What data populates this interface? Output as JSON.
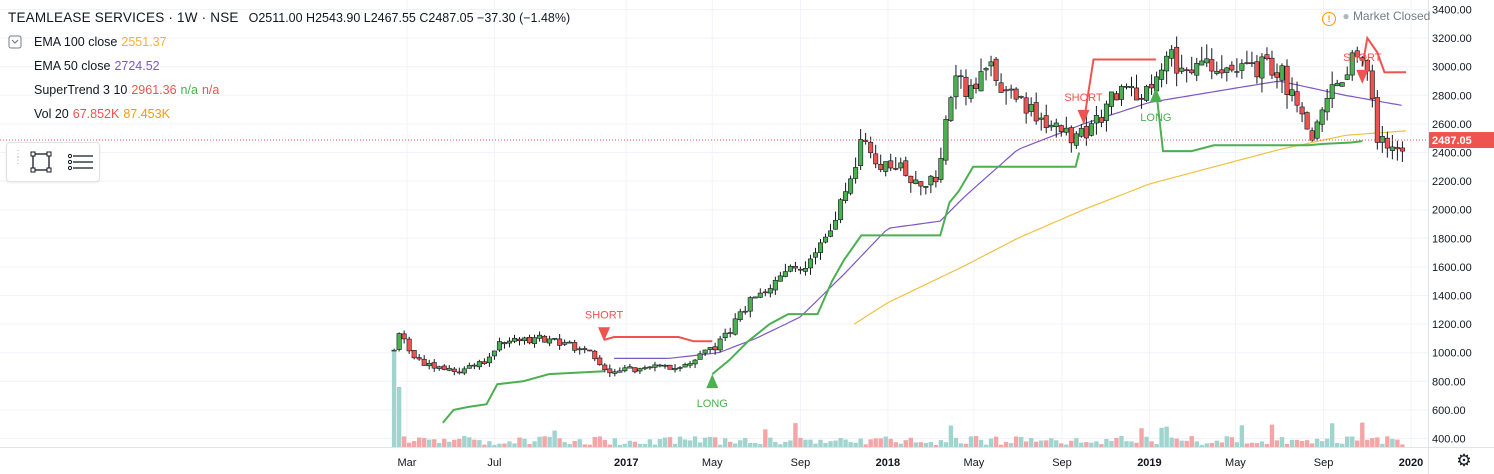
{
  "legend": {
    "symbol": "TEAMLEASE SERVICES · 1W · NSE",
    "ohlc": "O2511.00 H2543.90 L2467.55 C2487.05 −37.30 (−1.48%)",
    "indicators": [
      {
        "label": "EMA 100 close",
        "value": "2551.37",
        "color": "#f0b429"
      },
      {
        "label": "EMA 50 close",
        "value": "2724.52",
        "color": "#7e57c2"
      },
      {
        "label": "SuperTrend 3 10",
        "value": "2961.36",
        "extra1": "n/a",
        "extra2": "n/a",
        "color": "#ef5350",
        "extra_color": "#4caf50"
      },
      {
        "label": "Vol 20",
        "value": "67.852K",
        "value2": "87.453K",
        "color": "#ef5350",
        "color2": "#ff9800"
      }
    ]
  },
  "status": {
    "market": "Market Closed",
    "icon": "!"
  },
  "colors": {
    "up": "#4caf50",
    "down": "#ef5350",
    "body_up": "#4caf50",
    "body_down": "#ef5350",
    "ema100": "#f0c040",
    "ema50": "#7e57c2",
    "st_up": "#4caf50",
    "st_down": "#ef5350",
    "vol_up": "#9fd4cf",
    "vol_down": "#f4a6a6",
    "last_price": "#ef5350",
    "grid": "#f0f3fa"
  },
  "chart_data": {
    "type": "candlestick",
    "timeframe": "1W",
    "last_price": "2487.05",
    "y_ticks": [
      400,
      600,
      800,
      1000,
      1200,
      1400,
      1600,
      1800,
      2000,
      2200,
      2400,
      2600,
      2800,
      3000,
      3200,
      3400
    ],
    "y_tick_labels": [
      "400.00",
      "600.00",
      "800.00",
      "1000.00",
      "1200.00",
      "1400.00",
      "1600.00",
      "1800.00",
      "2000.00",
      "2200.00",
      "2400.00",
      "2600.00",
      "2800.00",
      "3000.00",
      "3200.00",
      "3400.00"
    ],
    "x_labels": [
      {
        "text": "Mar",
        "date": "2016-03-01",
        "bold": false
      },
      {
        "text": "Jul",
        "date": "2016-07-01",
        "bold": false
      },
      {
        "text": "2017",
        "date": "2017-01-01",
        "bold": true
      },
      {
        "text": "May",
        "date": "2017-05-01",
        "bold": false
      },
      {
        "text": "Sep",
        "date": "2017-09-01",
        "bold": false
      },
      {
        "text": "2018",
        "date": "2018-01-01",
        "bold": true
      },
      {
        "text": "May",
        "date": "2018-05-01",
        "bold": false
      },
      {
        "text": "Sep",
        "date": "2018-09-01",
        "bold": false
      },
      {
        "text": "2019",
        "date": "2019-01-01",
        "bold": true
      },
      {
        "text": "May",
        "date": "2019-05-01",
        "bold": false
      },
      {
        "text": "Sep",
        "date": "2019-09-01",
        "bold": false
      },
      {
        "text": "2020",
        "date": "2020-01-01",
        "bold": true
      }
    ],
    "price_anchors": [
      [
        "2016-02-12",
        1010
      ],
      [
        "2016-02-19",
        1150
      ],
      [
        "2016-03-01",
        1040
      ],
      [
        "2016-03-15",
        960
      ],
      [
        "2016-04-01",
        910
      ],
      [
        "2016-05-01",
        870
      ],
      [
        "2016-06-01",
        900
      ],
      [
        "2016-06-25",
        950
      ],
      [
        "2016-07-05",
        1070
      ],
      [
        "2016-08-01",
        1080
      ],
      [
        "2016-09-01",
        1100
      ],
      [
        "2016-10-15",
        1050
      ],
      [
        "2016-11-15",
        980
      ],
      [
        "2016-12-01",
        870
      ],
      [
        "2017-01-01",
        880
      ],
      [
        "2017-02-01",
        900
      ],
      [
        "2017-03-01",
        890
      ],
      [
        "2017-04-01",
        920
      ],
      [
        "2017-04-20",
        1000
      ],
      [
        "2017-05-10",
        1060
      ],
      [
        "2017-06-01",
        1200
      ],
      [
        "2017-06-20",
        1350
      ],
      [
        "2017-07-15",
        1400
      ],
      [
        "2017-08-15",
        1600
      ],
      [
        "2017-09-15",
        1620
      ],
      [
        "2017-10-05",
        1800
      ],
      [
        "2017-10-25",
        2000
      ],
      [
        "2017-11-10",
        2200
      ],
      [
        "2017-11-25",
        2450
      ],
      [
        "2017-12-25",
        2300
      ],
      [
        "2018-01-15",
        2300
      ],
      [
        "2018-02-10",
        2150
      ],
      [
        "2018-03-10",
        2200
      ],
      [
        "2018-03-25",
        2650
      ],
      [
        "2018-04-05",
        3000
      ],
      [
        "2018-04-25",
        2800
      ],
      [
        "2018-05-20",
        3000
      ],
      [
        "2018-06-20",
        2800
      ],
      [
        "2018-07-25",
        2650
      ],
      [
        "2018-08-25",
        2550
      ],
      [
        "2018-09-25",
        2500
      ],
      [
        "2018-10-20",
        2600
      ],
      [
        "2018-11-20",
        2850
      ],
      [
        "2018-12-20",
        2750
      ],
      [
        "2019-01-10",
        2950
      ],
      [
        "2019-02-01",
        3050
      ],
      [
        "2019-03-01",
        2950
      ],
      [
        "2019-04-01",
        3000
      ],
      [
        "2019-05-01",
        2950
      ],
      [
        "2019-06-01",
        3000
      ],
      [
        "2019-07-01",
        3000
      ],
      [
        "2019-07-25",
        2700
      ],
      [
        "2019-08-15",
        2450
      ],
      [
        "2019-09-10",
        2850
      ],
      [
        "2019-10-15",
        3050
      ],
      [
        "2019-11-05",
        2950
      ],
      [
        "2019-11-15",
        2500
      ],
      [
        "2019-12-01",
        2400
      ],
      [
        "2019-12-25",
        2490
      ]
    ],
    "ema50_anchors": [
      [
        "2016-12-15",
        960
      ],
      [
        "2017-03-01",
        960
      ],
      [
        "2017-05-10",
        1000
      ],
      [
        "2017-07-01",
        1100
      ],
      [
        "2017-09-01",
        1250
      ],
      [
        "2017-11-01",
        1550
      ],
      [
        "2018-01-01",
        1870
      ],
      [
        "2018-03-15",
        1920
      ],
      [
        "2018-04-20",
        2100
      ],
      [
        "2018-07-01",
        2420
      ],
      [
        "2018-10-01",
        2600
      ],
      [
        "2019-01-01",
        2750
      ],
      [
        "2019-05-01",
        2850
      ],
      [
        "2019-07-01",
        2900
      ],
      [
        "2019-10-01",
        2800
      ],
      [
        "2019-12-25",
        2724.52
      ]
    ],
    "ema100_anchors": [
      [
        "2017-11-15",
        1200
      ],
      [
        "2018-01-01",
        1350
      ],
      [
        "2018-04-15",
        1600
      ],
      [
        "2018-07-01",
        1800
      ],
      [
        "2018-10-01",
        2000
      ],
      [
        "2019-01-01",
        2180
      ],
      [
        "2019-04-01",
        2300
      ],
      [
        "2019-07-01",
        2420
      ],
      [
        "2019-10-01",
        2520
      ],
      [
        "2019-12-25",
        2551.37
      ]
    ],
    "supertrend_segments": [
      {
        "dir": "up",
        "points": [
          [
            "2016-04-20",
            510
          ],
          [
            "2016-05-05",
            600
          ],
          [
            "2016-05-25",
            620
          ],
          [
            "2016-06-20",
            640
          ],
          [
            "2016-07-05",
            780
          ],
          [
            "2016-08-10",
            800
          ],
          [
            "2016-09-15",
            850
          ],
          [
            "2016-12-01",
            870
          ]
        ]
      },
      {
        "dir": "down",
        "points": [
          [
            "2016-12-01",
            1090
          ],
          [
            "2016-12-15",
            1110
          ],
          [
            "2017-03-15",
            1110
          ],
          [
            "2017-04-05",
            1080
          ],
          [
            "2017-05-01",
            1080
          ]
        ]
      },
      {
        "dir": "up",
        "points": [
          [
            "2017-05-01",
            850
          ],
          [
            "2017-05-25",
            950
          ],
          [
            "2017-06-20",
            1080
          ],
          [
            "2017-07-20",
            1200
          ],
          [
            "2017-08-15",
            1270
          ],
          [
            "2017-09-25",
            1270
          ],
          [
            "2017-10-15",
            1500
          ],
          [
            "2017-11-01",
            1650
          ],
          [
            "2017-11-25",
            1820
          ],
          [
            "2018-03-15",
            1820
          ],
          [
            "2018-03-28",
            2050
          ],
          [
            "2018-04-10",
            2130
          ],
          [
            "2018-04-30",
            2300
          ],
          [
            "2018-09-20",
            2300
          ],
          [
            "2018-09-25",
            2400
          ]
        ]
      },
      {
        "dir": "down",
        "points": [
          [
            "2018-10-01",
            2600
          ],
          [
            "2018-10-15",
            3050
          ],
          [
            "2019-01-10",
            3050
          ]
        ]
      },
      {
        "dir": "up",
        "points": [
          [
            "2019-01-10",
            2850
          ],
          [
            "2019-01-20",
            2410
          ],
          [
            "2019-03-01",
            2410
          ],
          [
            "2019-04-01",
            2450
          ],
          [
            "2019-08-10",
            2450
          ],
          [
            "2019-09-01",
            2460
          ],
          [
            "2019-10-10",
            2470
          ],
          [
            "2019-10-25",
            2480
          ]
        ]
      },
      {
        "dir": "down",
        "points": [
          [
            "2019-10-25",
            3000
          ],
          [
            "2019-11-01",
            3200
          ],
          [
            "2019-11-15",
            3100
          ],
          [
            "2019-11-25",
            2960
          ],
          [
            "2019-12-25",
            2961.36
          ]
        ]
      }
    ],
    "signals": [
      {
        "type": "SHORT",
        "date": "2016-12-01",
        "price": 1080
      },
      {
        "type": "LONG",
        "date": "2017-05-01",
        "price": 850
      },
      {
        "type": "SHORT",
        "date": "2018-10-01",
        "price": 2600
      },
      {
        "type": "LONG",
        "date": "2019-01-10",
        "price": 2850
      },
      {
        "type": "SHORT",
        "date": "2019-10-25",
        "price": 2880
      }
    ]
  }
}
